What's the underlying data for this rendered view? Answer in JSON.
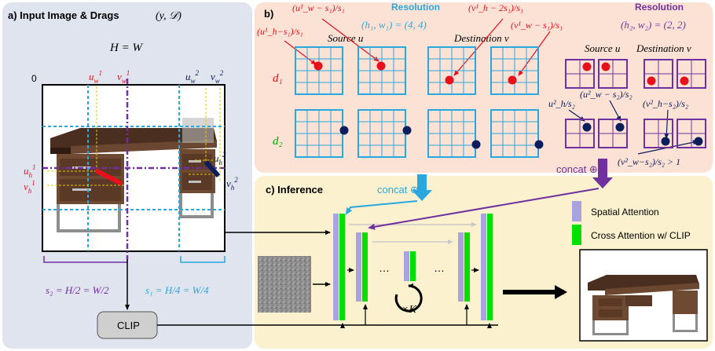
{
  "panel_a": {
    "title": "a)  Input Image & Drags",
    "title_math": "(y, 𝒟)",
    "eq": "H = W",
    "origin": "0",
    "labels_top": [
      "u",
      "v",
      "u",
      "v"
    ],
    "label_u1h": "u",
    "label_v1h": "v",
    "label_u2h": "u",
    "label_v2h": "v",
    "s2": "s₂ = H/2 = W/2",
    "s1": "s₁ = H/4 = W/4",
    "clip": "CLIP"
  },
  "panel_b": {
    "label": "b)",
    "res_title_1": "Resolution",
    "res_val_1": "(h₁, w₁) = (4, 4)",
    "res_title_2": "Resolution",
    "res_val_2": "(h₂, w₂) = (2, 2)",
    "source": "Source u",
    "destination": "Destination v",
    "d1": "d₁",
    "d2": "d₂",
    "ann_uw1": "(u¹_w − s₁)/s₁",
    "ann_vh1": "(v¹_h − 2s₁)/s₁",
    "ann_uh1": "(u¹_h−s₁)/s₁",
    "ann_vw1": "(v¹_w − s₁)/s₁",
    "ann_uh2": "u²_h/s₂",
    "ann_uw2": "(u²_w − s₂)/s₂",
    "ann_vh2": "(v²_h−s₂)/s₂",
    "ann_vw2": "(v²_w−s₂)/s₂ > 1",
    "concat_right": "concat ⊕"
  },
  "panel_c": {
    "label": "c)  Inference",
    "concat_left": "concat ⊕",
    "legend_spatial": "Spatial Attention",
    "legend_cross": "Cross Attention w/ CLIP",
    "dots": "…",
    "loop": "×K"
  },
  "colors": {
    "red": "#e8101a",
    "cyan": "#29a8e0",
    "purple": "#7030a0",
    "navy": "#0b1e5b",
    "green": "#00cc00",
    "lavender": "#a9a4df",
    "peach": "#fbe2d5",
    "yellow": "#fcf1ce",
    "slate": "#dfe4ee"
  }
}
